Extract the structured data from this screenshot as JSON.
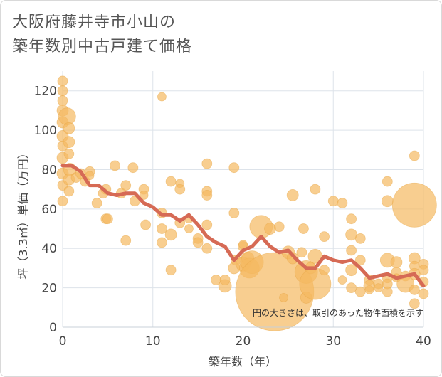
{
  "title_line1": "大阪府藤井寺市小山の",
  "title_line2": "築年数別中古戸建て価格",
  "chart_data": {
    "type": "scatter+line",
    "xlabel": "築年数（年）",
    "ylabel": "坪（3.3㎡）単価（万円）",
    "xlim": [
      0,
      40
    ],
    "ylim": [
      0,
      130
    ],
    "xticks": [
      0,
      10,
      20,
      30,
      40
    ],
    "yticks": [
      0,
      20,
      40,
      60,
      80,
      100,
      120
    ],
    "note": "円の大きさは、取引のあった物件面積を示す",
    "colors": {
      "bubble": "#f5b961",
      "line": "#d66a55",
      "grid": "#dde3ea"
    },
    "bubbles": [
      {
        "x": 0,
        "y": 125,
        "r": 7
      },
      {
        "x": 0,
        "y": 120,
        "r": 7
      },
      {
        "x": 0,
        "y": 115,
        "r": 7
      },
      {
        "x": 0,
        "y": 110,
        "r": 8
      },
      {
        "x": 0,
        "y": 104,
        "r": 8
      },
      {
        "x": 0,
        "y": 97,
        "r": 8
      },
      {
        "x": 0,
        "y": 92,
        "r": 7
      },
      {
        "x": 0,
        "y": 86,
        "r": 8
      },
      {
        "x": 0,
        "y": 78,
        "r": 8
      },
      {
        "x": 0,
        "y": 72,
        "r": 7
      },
      {
        "x": 0,
        "y": 64,
        "r": 7
      },
      {
        "x": 0.5,
        "y": 107,
        "r": 12
      },
      {
        "x": 0.7,
        "y": 101,
        "r": 8
      },
      {
        "x": 0.7,
        "y": 94,
        "r": 8
      },
      {
        "x": 0.7,
        "y": 88,
        "r": 7
      },
      {
        "x": 0.8,
        "y": 80,
        "r": 9
      },
      {
        "x": 0.7,
        "y": 75,
        "r": 8
      },
      {
        "x": 0.7,
        "y": 69,
        "r": 7
      },
      {
        "x": 1.5,
        "y": 76,
        "r": 7
      },
      {
        "x": 2,
        "y": 78,
        "r": 7
      },
      {
        "x": 2.5,
        "y": 74,
        "r": 7
      },
      {
        "x": 3,
        "y": 79,
        "r": 7
      },
      {
        "x": 3,
        "y": 77,
        "r": 6
      },
      {
        "x": 3.8,
        "y": 63,
        "r": 7
      },
      {
        "x": 4.5,
        "y": 68,
        "r": 7
      },
      {
        "x": 4.8,
        "y": 70,
        "r": 7
      },
      {
        "x": 4.8,
        "y": 55,
        "r": 7
      },
      {
        "x": 5,
        "y": 55,
        "r": 7
      },
      {
        "x": 5.8,
        "y": 82,
        "r": 7
      },
      {
        "x": 6.5,
        "y": 68,
        "r": 7
      },
      {
        "x": 7,
        "y": 72,
        "r": 7
      },
      {
        "x": 7,
        "y": 44,
        "r": 7
      },
      {
        "x": 7.8,
        "y": 81,
        "r": 7
      },
      {
        "x": 8,
        "y": 64,
        "r": 7
      },
      {
        "x": 9,
        "y": 70,
        "r": 7
      },
      {
        "x": 9,
        "y": 67,
        "r": 6
      },
      {
        "x": 9.2,
        "y": 52,
        "r": 7
      },
      {
        "x": 11,
        "y": 117,
        "r": 6
      },
      {
        "x": 11,
        "y": 58,
        "r": 7
      },
      {
        "x": 11,
        "y": 50,
        "r": 7
      },
      {
        "x": 11,
        "y": 43,
        "r": 7
      },
      {
        "x": 12,
        "y": 74,
        "r": 7
      },
      {
        "x": 12,
        "y": 47,
        "r": 8
      },
      {
        "x": 12,
        "y": 29,
        "r": 7
      },
      {
        "x": 13,
        "y": 73,
        "r": 6
      },
      {
        "x": 13,
        "y": 70,
        "r": 7
      },
      {
        "x": 13,
        "y": 53,
        "r": 7
      },
      {
        "x": 14,
        "y": 55,
        "r": 6
      },
      {
        "x": 14,
        "y": 50,
        "r": 6
      },
      {
        "x": 15,
        "y": 45,
        "r": 7
      },
      {
        "x": 15,
        "y": 43,
        "r": 7
      },
      {
        "x": 16,
        "y": 83,
        "r": 7
      },
      {
        "x": 16,
        "y": 69,
        "r": 7
      },
      {
        "x": 16,
        "y": 67,
        "r": 7
      },
      {
        "x": 16,
        "y": 52,
        "r": 7
      },
      {
        "x": 16,
        "y": 40,
        "r": 7
      },
      {
        "x": 17,
        "y": 24,
        "r": 7
      },
      {
        "x": 18,
        "y": 21,
        "r": 9
      },
      {
        "x": 18,
        "y": 24,
        "r": 7
      },
      {
        "x": 19,
        "y": 81,
        "r": 7
      },
      {
        "x": 19,
        "y": 58,
        "r": 7
      },
      {
        "x": 19,
        "y": 30,
        "r": 8
      },
      {
        "x": 19.2,
        "y": 34,
        "r": 7
      },
      {
        "x": 20,
        "y": 32,
        "r": 10
      },
      {
        "x": 20,
        "y": 41,
        "r": 7
      },
      {
        "x": 20,
        "y": 42,
        "r": 6
      },
      {
        "x": 20.5,
        "y": 35,
        "r": 9
      },
      {
        "x": 20.7,
        "y": 30,
        "r": 14
      },
      {
        "x": 21,
        "y": 33,
        "r": 16
      },
      {
        "x": 22,
        "y": 51,
        "r": 16
      },
      {
        "x": 23,
        "y": 50,
        "r": 8
      },
      {
        "x": 23.5,
        "y": 18,
        "r": 55
      },
      {
        "x": 24,
        "y": 51,
        "r": 7
      },
      {
        "x": 24.5,
        "y": 15,
        "r": 6
      },
      {
        "x": 25,
        "y": 38,
        "r": 9
      },
      {
        "x": 25.5,
        "y": 67,
        "r": 8
      },
      {
        "x": 25.5,
        "y": 35,
        "r": 8
      },
      {
        "x": 26.5,
        "y": 38,
        "r": 7
      },
      {
        "x": 26.7,
        "y": 50,
        "r": 7
      },
      {
        "x": 27,
        "y": 28,
        "r": 16
      },
      {
        "x": 27,
        "y": 15,
        "r": 8
      },
      {
        "x": 27.5,
        "y": 30,
        "r": 8
      },
      {
        "x": 28,
        "y": 70,
        "r": 7
      },
      {
        "x": 28,
        "y": 36,
        "r": 10
      },
      {
        "x": 28,
        "y": 22,
        "r": 22
      },
      {
        "x": 29,
        "y": 46,
        "r": 7
      },
      {
        "x": 29,
        "y": 29,
        "r": 7
      },
      {
        "x": 30,
        "y": 64,
        "r": 7
      },
      {
        "x": 31,
        "y": 63,
        "r": 7
      },
      {
        "x": 31,
        "y": 24,
        "r": 6
      },
      {
        "x": 32,
        "y": 55,
        "r": 7
      },
      {
        "x": 32,
        "y": 47,
        "r": 8
      },
      {
        "x": 32,
        "y": 39,
        "r": 7
      },
      {
        "x": 32,
        "y": 29,
        "r": 8
      },
      {
        "x": 32,
        "y": 20,
        "r": 7
      },
      {
        "x": 33,
        "y": 45,
        "r": 7
      },
      {
        "x": 33,
        "y": 34,
        "r": 7
      },
      {
        "x": 33,
        "y": 18,
        "r": 7
      },
      {
        "x": 34,
        "y": 24,
        "r": 7
      },
      {
        "x": 34,
        "y": 21,
        "r": 8
      },
      {
        "x": 34,
        "y": 19,
        "r": 6
      },
      {
        "x": 35,
        "y": 22,
        "r": 7
      },
      {
        "x": 35,
        "y": 20,
        "r": 6
      },
      {
        "x": 36,
        "y": 74,
        "r": 7
      },
      {
        "x": 36,
        "y": 64,
        "r": 8
      },
      {
        "x": 36,
        "y": 34,
        "r": 10
      },
      {
        "x": 36,
        "y": 25,
        "r": 7
      },
      {
        "x": 36,
        "y": 22,
        "r": 7
      },
      {
        "x": 36,
        "y": 18,
        "r": 7
      },
      {
        "x": 37,
        "y": 33,
        "r": 8
      },
      {
        "x": 37,
        "y": 28,
        "r": 7
      },
      {
        "x": 37,
        "y": 25,
        "r": 6
      },
      {
        "x": 38,
        "y": 26,
        "r": 7
      },
      {
        "x": 38,
        "y": 22,
        "r": 12
      },
      {
        "x": 39,
        "y": 87,
        "r": 7
      },
      {
        "x": 39,
        "y": 62,
        "r": 31
      },
      {
        "x": 39,
        "y": 35,
        "r": 8
      },
      {
        "x": 39,
        "y": 31,
        "r": 7
      },
      {
        "x": 39,
        "y": 27,
        "r": 8
      },
      {
        "x": 39,
        "y": 19,
        "r": 7
      },
      {
        "x": 39,
        "y": 12,
        "r": 7
      },
      {
        "x": 40,
        "y": 32,
        "r": 7
      },
      {
        "x": 40,
        "y": 29,
        "r": 7
      },
      {
        "x": 40,
        "y": 23,
        "r": 7
      },
      {
        "x": 40,
        "y": 17,
        "r": 7
      }
    ],
    "line": [
      {
        "x": 0,
        "y": 82
      },
      {
        "x": 1,
        "y": 82
      },
      {
        "x": 2,
        "y": 79
      },
      {
        "x": 3,
        "y": 72
      },
      {
        "x": 4,
        "y": 72
      },
      {
        "x": 5,
        "y": 68
      },
      {
        "x": 6,
        "y": 67
      },
      {
        "x": 7,
        "y": 68
      },
      {
        "x": 8,
        "y": 68
      },
      {
        "x": 9,
        "y": 63
      },
      {
        "x": 10,
        "y": 61
      },
      {
        "x": 11,
        "y": 57
      },
      {
        "x": 12,
        "y": 57
      },
      {
        "x": 13,
        "y": 54
      },
      {
        "x": 14,
        "y": 57
      },
      {
        "x": 15,
        "y": 52
      },
      {
        "x": 16,
        "y": 46
      },
      {
        "x": 17,
        "y": 43
      },
      {
        "x": 18,
        "y": 41
      },
      {
        "x": 19,
        "y": 34
      },
      {
        "x": 20,
        "y": 39
      },
      {
        "x": 21,
        "y": 41
      },
      {
        "x": 22,
        "y": 46
      },
      {
        "x": 23,
        "y": 41
      },
      {
        "x": 24,
        "y": 38
      },
      {
        "x": 25,
        "y": 39
      },
      {
        "x": 26,
        "y": 34
      },
      {
        "x": 27,
        "y": 30
      },
      {
        "x": 28,
        "y": 30
      },
      {
        "x": 29,
        "y": 36
      },
      {
        "x": 30,
        "y": 34
      },
      {
        "x": 31,
        "y": 33
      },
      {
        "x": 32,
        "y": 34
      },
      {
        "x": 33,
        "y": 30
      },
      {
        "x": 34,
        "y": 25
      },
      {
        "x": 35,
        "y": 26
      },
      {
        "x": 36,
        "y": 27
      },
      {
        "x": 37,
        "y": 25
      },
      {
        "x": 38,
        "y": 26
      },
      {
        "x": 39,
        "y": 27
      },
      {
        "x": 40,
        "y": 21
      }
    ]
  }
}
